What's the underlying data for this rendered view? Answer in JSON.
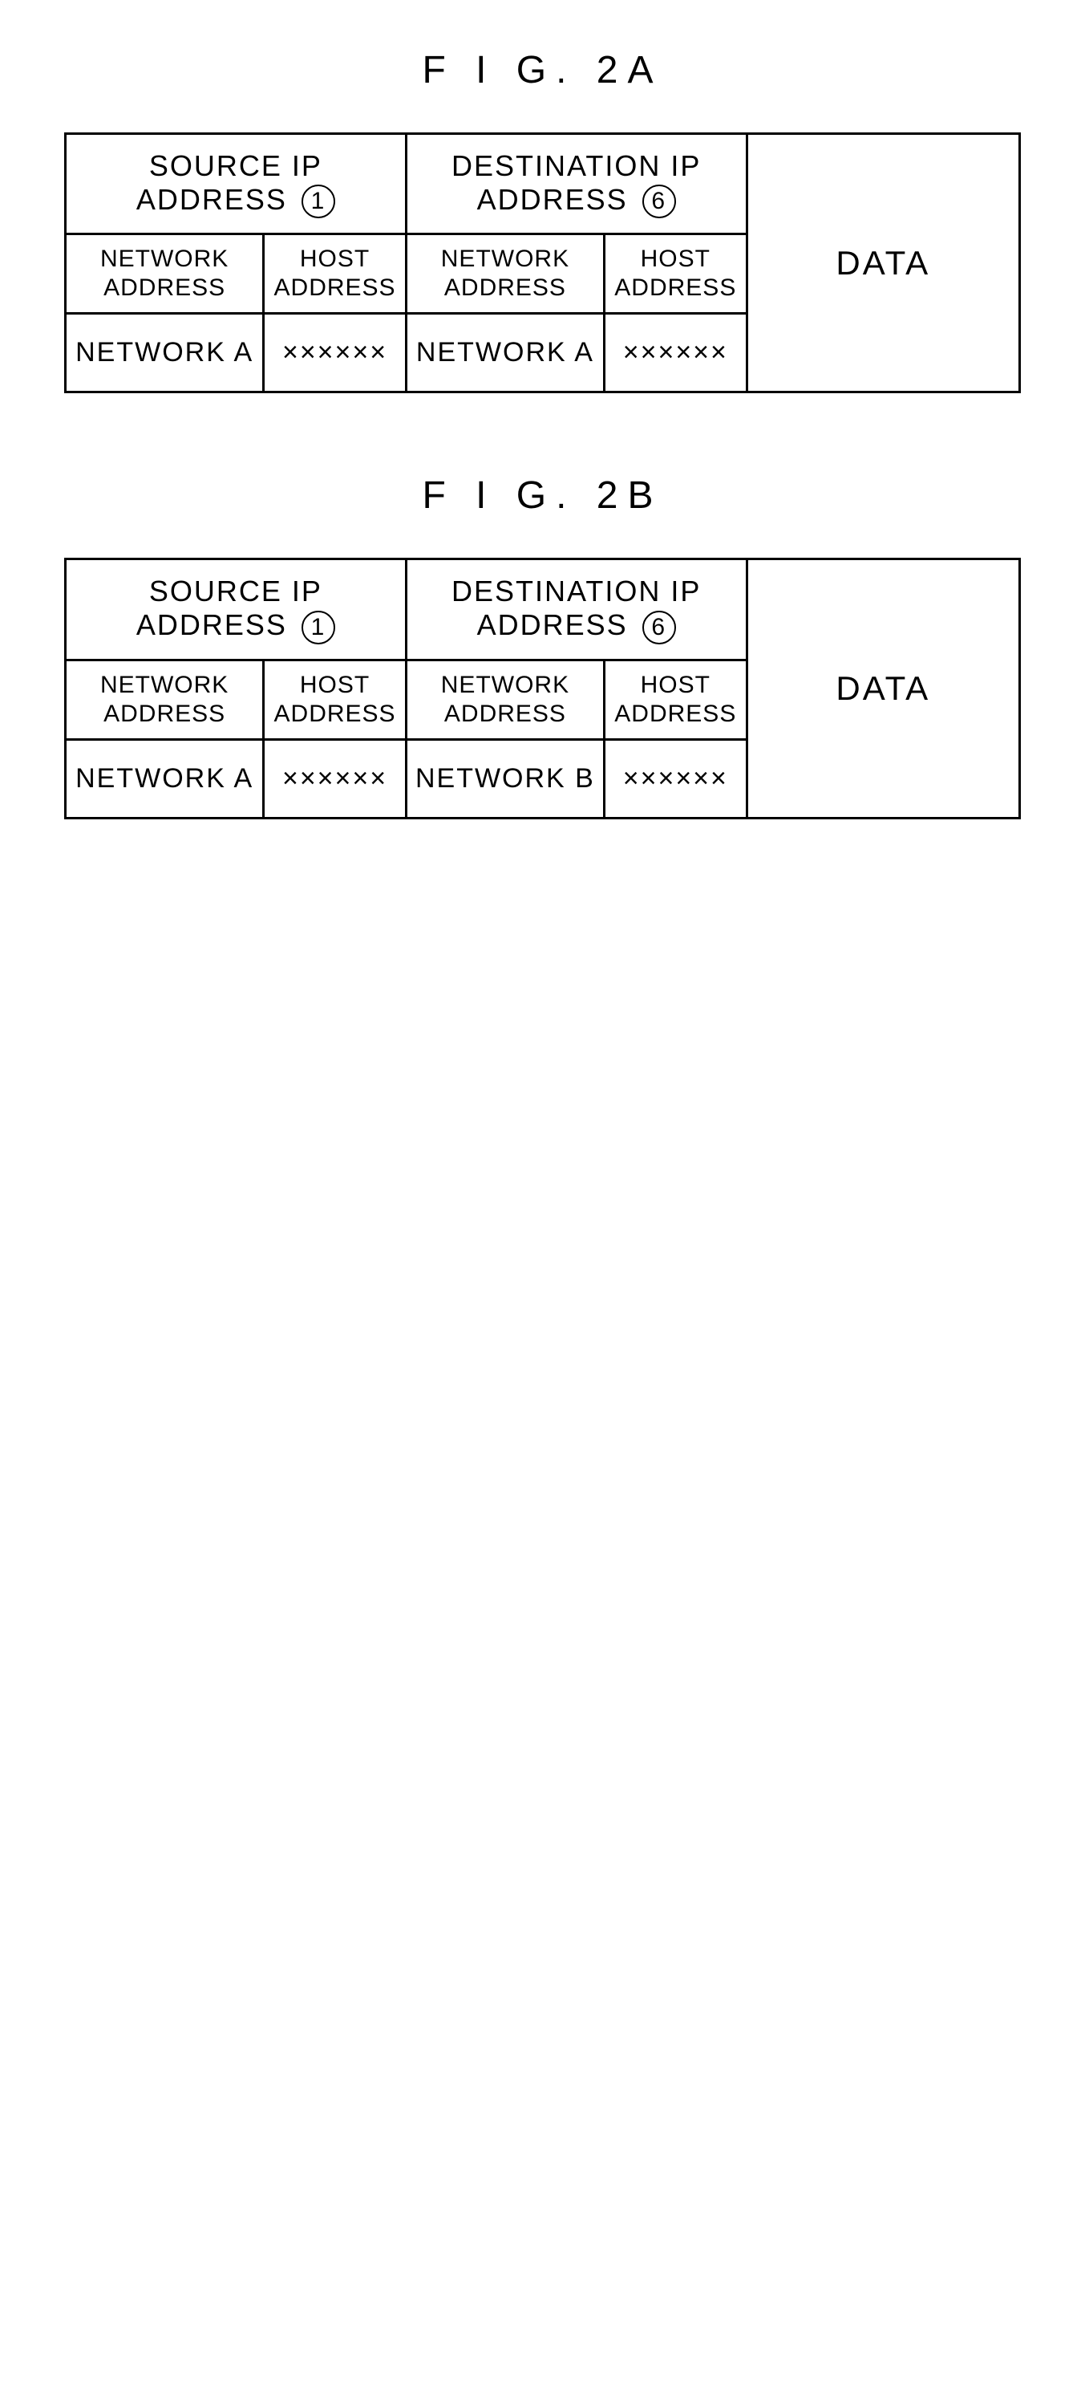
{
  "figures": {
    "a": {
      "title": "F I G. 2A",
      "source": {
        "header": "SOURCE IP ADDRESS",
        "header_num": "1",
        "network_label": "NETWORK ADDRESS",
        "network_value": "NETWORK A",
        "host_label": "HOST\nADDRESS",
        "host_value": "××××××"
      },
      "dest": {
        "header": "DESTINATION IP ADDRESS",
        "header_num": "6",
        "network_label": "NETWORK ADDRESS",
        "network_value": "NETWORK A",
        "host_label": "HOST\nADDRESS",
        "host_value": "××××××"
      },
      "data_label": "DATA"
    },
    "b": {
      "title": "F I G. 2B",
      "source": {
        "header": "SOURCE IP ADDRESS",
        "header_num": "1",
        "network_label": "NETWORK ADDRESS",
        "network_value": "NETWORK A",
        "host_label": "HOST\nADDRESS",
        "host_value": "××××××"
      },
      "dest": {
        "header": "DESTINATION IP ADDRESS",
        "header_num": "6",
        "network_label": "NETWORK ADDRESS",
        "network_value": "NETWORK B",
        "host_label": "HOST\nADDRESS",
        "host_value": "××××××"
      },
      "data_label": "DATA"
    }
  },
  "styling": {
    "border_color": "#000000",
    "border_width": 3,
    "background_color": "#ffffff",
    "title_fontsize": 48,
    "header_fontsize": 36,
    "subheader_fontsize": 30,
    "value_fontsize": 34,
    "data_fontsize": 42
  }
}
